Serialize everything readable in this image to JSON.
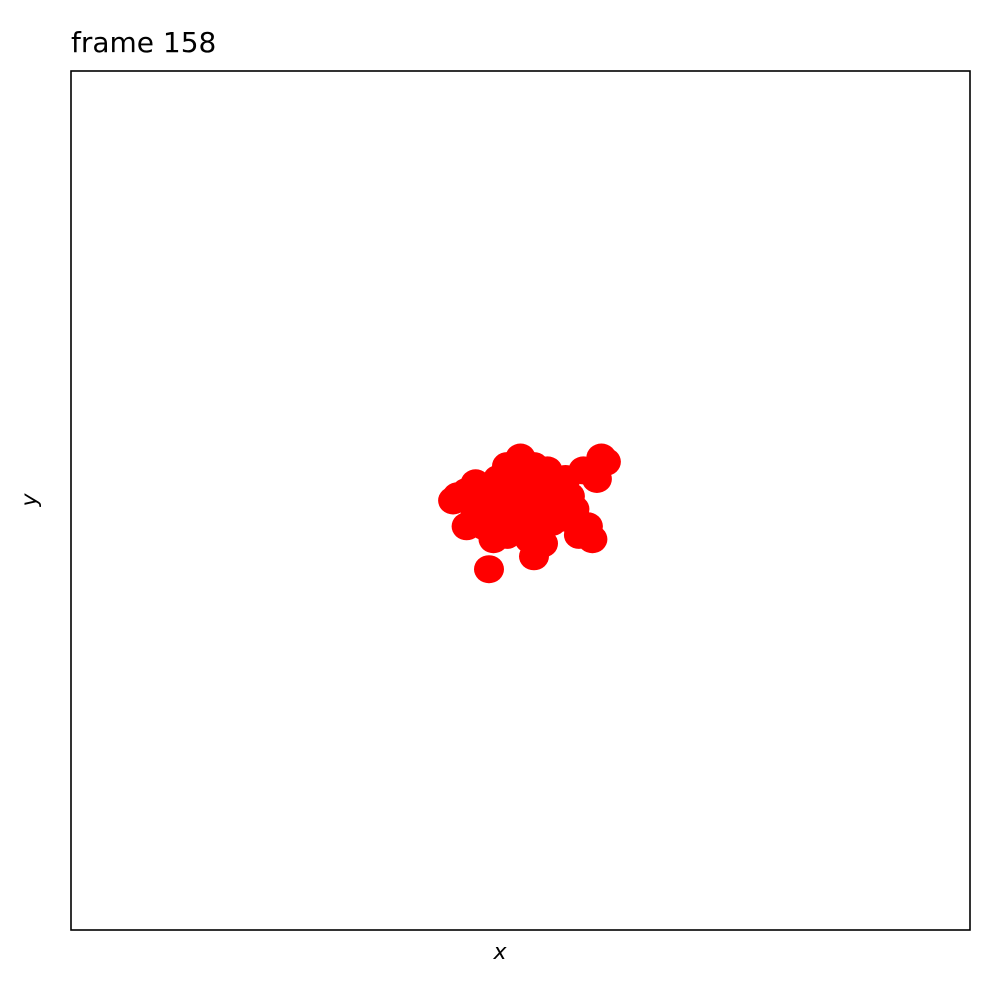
{
  "chart_data": {
    "type": "scatter",
    "title": "frame 158",
    "xlabel": "x",
    "ylabel": "y",
    "xlim": [
      -1,
      1
    ],
    "ylim": [
      -1,
      1
    ],
    "grid": false,
    "marker_color": "#ff0000",
    "points": [
      {
        "x": 0.0,
        "y": 0.1
      },
      {
        "x": -0.03,
        "y": 0.08
      },
      {
        "x": 0.03,
        "y": 0.08
      },
      {
        "x": 0.06,
        "y": 0.07
      },
      {
        "x": 0.18,
        "y": 0.1
      },
      {
        "x": 0.19,
        "y": 0.09
      },
      {
        "x": 0.17,
        "y": 0.05
      },
      {
        "x": 0.14,
        "y": 0.07
      },
      {
        "x": 0.1,
        "y": 0.05
      },
      {
        "x": -0.1,
        "y": 0.04
      },
      {
        "x": -0.08,
        "y": 0.03
      },
      {
        "x": -0.12,
        "y": 0.02
      },
      {
        "x": -0.14,
        "y": 0.01
      },
      {
        "x": -0.15,
        "y": 0.0
      },
      {
        "x": -0.09,
        "y": 0.0
      },
      {
        "x": -0.05,
        "y": 0.05
      },
      {
        "x": -0.01,
        "y": 0.06
      },
      {
        "x": 0.02,
        "y": 0.04
      },
      {
        "x": 0.05,
        "y": 0.02
      },
      {
        "x": 0.08,
        "y": 0.03
      },
      {
        "x": 0.11,
        "y": 0.01
      },
      {
        "x": 0.12,
        "y": -0.02
      },
      {
        "x": 0.09,
        "y": -0.01
      },
      {
        "x": 0.05,
        "y": -0.01
      },
      {
        "x": 0.0,
        "y": 0.0
      },
      {
        "x": -0.03,
        "y": 0.02
      },
      {
        "x": -0.06,
        "y": -0.01
      },
      {
        "x": -0.1,
        "y": -0.03
      },
      {
        "x": -0.12,
        "y": -0.06
      },
      {
        "x": -0.08,
        "y": -0.06
      },
      {
        "x": -0.04,
        "y": -0.05
      },
      {
        "x": -0.02,
        "y": -0.03
      },
      {
        "x": 0.01,
        "y": -0.04
      },
      {
        "x": 0.04,
        "y": -0.06
      },
      {
        "x": 0.07,
        "y": -0.05
      },
      {
        "x": 0.1,
        "y": -0.04
      },
      {
        "x": 0.15,
        "y": -0.06
      },
      {
        "x": 0.13,
        "y": -0.08
      },
      {
        "x": 0.16,
        "y": -0.09
      },
      {
        "x": -0.06,
        "y": -0.09
      },
      {
        "x": -0.03,
        "y": -0.08
      },
      {
        "x": 0.02,
        "y": -0.09
      },
      {
        "x": 0.05,
        "y": -0.1
      },
      {
        "x": 0.03,
        "y": -0.13
      },
      {
        "x": -0.07,
        "y": -0.16
      }
    ]
  }
}
